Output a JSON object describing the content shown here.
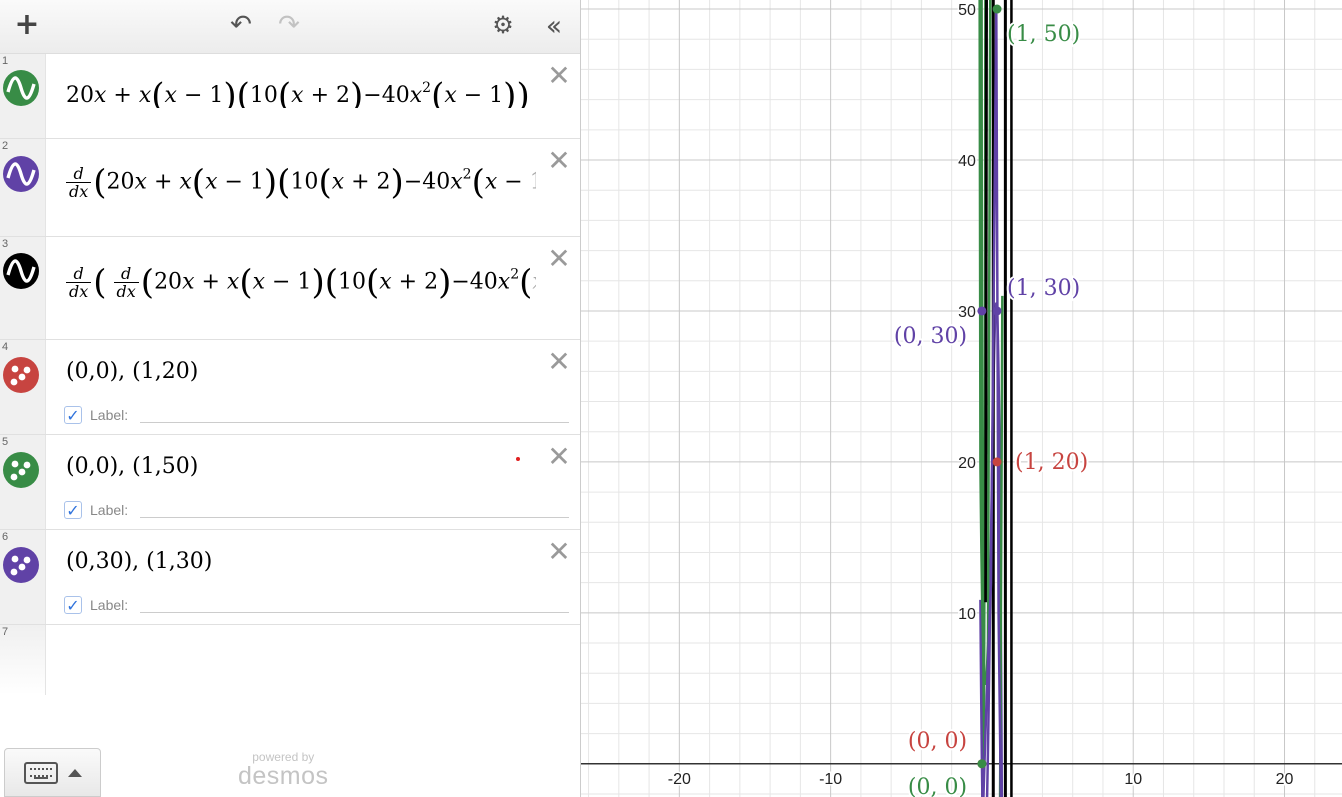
{
  "toolbar": {
    "add_icon": "plus-icon",
    "undo_icon": "undo-icon",
    "redo_icon": "redo-icon",
    "settings_icon": "gear-icon",
    "collapse_icon": "double-chevron-left-icon"
  },
  "colors": {
    "green": "#388c46",
    "purple": "#6042a6",
    "black": "#000000",
    "red": "#c74440",
    "checkbox": "#2f72dc"
  },
  "expressions": [
    {
      "index": "1",
      "type": "function",
      "color": "#388c46",
      "latex": "20x+x(x-1)(10(x+2)-40x^2(x-1))"
    },
    {
      "index": "2",
      "type": "function",
      "color": "#6042a6",
      "latex": "d/dx(20x+x(x-1)(10(x+2)-40x^2(x-1"
    },
    {
      "index": "3",
      "type": "function",
      "color": "#000000",
      "latex": "d/dx(d/dx(20x+x(x-1)(10(x+2)-40x^2("
    },
    {
      "index": "4",
      "type": "points",
      "color": "#c74440",
      "text": "(0,0), (1,20)",
      "label_text": "Label:",
      "label_checked": true
    },
    {
      "index": "5",
      "type": "points",
      "color": "#388c46",
      "text": "(0,0), (1,50)",
      "label_text": "Label:",
      "label_checked": true
    },
    {
      "index": "6",
      "type": "points",
      "color": "#6042a6",
      "text": "(0,30), (1,30)",
      "label_text": "Label:",
      "label_checked": true
    },
    {
      "index": "7",
      "type": "empty"
    }
  ],
  "keyboard": {
    "icon": "keyboard-icon",
    "caret_icon": "caret-up-icon"
  },
  "brand": {
    "powered_by": "powered by",
    "name": "desmos"
  },
  "graph": {
    "x_range": [
      -26.5,
      23.8
    ],
    "y_range": [
      -2.2,
      50.6
    ],
    "x_tick_labels": [
      "-20",
      "-10",
      "10",
      "20"
    ],
    "y_tick_labels": [
      "10",
      "20",
      "30",
      "40",
      "50"
    ],
    "point_labels": [
      {
        "text": "(1, 50)",
        "color": "#388c46"
      },
      {
        "text": "(1, 30)",
        "color": "#6042a6"
      },
      {
        "text": "(0, 30)",
        "color": "#6042a6"
      },
      {
        "text": "(1, 20)",
        "color": "#c74440"
      },
      {
        "text": "(0, 0)",
        "color": "#c74440"
      },
      {
        "text": "(0, 0)",
        "color": "#388c46"
      }
    ]
  }
}
